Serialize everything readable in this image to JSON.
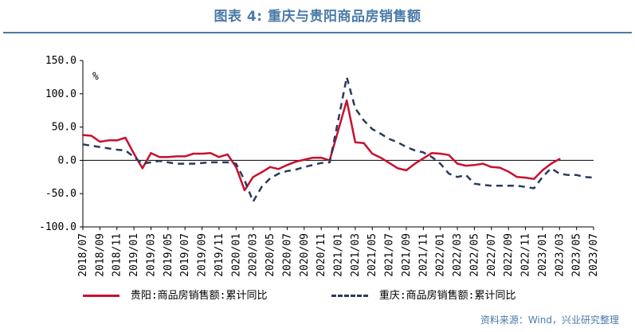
{
  "header": {
    "title": "图表 4:  重庆与贵阳商品房销售额"
  },
  "source": "资料来源：Wind，兴业研究整理",
  "chart_data": {
    "type": "line",
    "title": "图表 4:  重庆与贵阳商品房销售额",
    "unit_label": "%",
    "ylim": [
      -100,
      150
    ],
    "yticks": [
      150,
      100,
      50,
      0,
      -50,
      -100
    ],
    "ytick_labels": [
      "150.0",
      "100.0",
      "50.0",
      "0.0",
      "-50.0",
      "-100.0"
    ],
    "xtick_labels": [
      "2018/07",
      "2018/09",
      "2018/11",
      "2019/01",
      "2019/03",
      "2019/05",
      "2019/07",
      "2019/09",
      "2019/11",
      "2020/01",
      "2020/03",
      "2020/05",
      "2020/07",
      "2020/09",
      "2020/11",
      "2021/01",
      "2021/03",
      "2021/05",
      "2021/07",
      "2021/09",
      "2021/11",
      "2022/01",
      "2022/03",
      "2022/05",
      "2022/07",
      "2022/09",
      "2022/11",
      "2023/01",
      "2023/03",
      "2023/05",
      "2023/07"
    ],
    "x_note": "monthly from 2018/07 to 2023/07; values indexed by month",
    "series": [
      {
        "name": "贵阳:商品房销售额:累计同比",
        "color": "#c8102e",
        "style": "solid",
        "values": [
          38,
          37,
          28,
          30,
          30,
          34,
          10,
          -12,
          11,
          5,
          5,
          6,
          6,
          10,
          10,
          11,
          5,
          9,
          -10,
          -45,
          -25,
          -18,
          -10,
          -13,
          -7,
          -2,
          1,
          4,
          4,
          0,
          45,
          90,
          27,
          26,
          10,
          4,
          -4,
          -12,
          -15,
          -5,
          3,
          11,
          10,
          8,
          -5,
          -8,
          -7,
          -5,
          -10,
          -11,
          -17,
          -25,
          -26,
          -28,
          -15,
          -5,
          2,
          null,
          null,
          null,
          null
        ],
        "display_values": [
          "",
          "",
          "",
          "",
          "",
          "",
          "",
          "",
          "",
          "",
          "",
          "",
          "",
          "",
          "",
          "",
          "",
          "",
          "",
          "",
          "",
          "",
          "",
          "",
          "",
          "",
          "",
          "",
          "",
          "",
          "",
          "",
          "",
          "",
          "",
          "",
          "",
          "",
          "",
          "",
          "",
          "",
          "",
          "",
          "",
          "",
          "",
          "",
          "",
          "",
          "",
          "",
          "",
          "",
          "",
          "",
          ""
        ]
      },
      {
        "name": "重庆:商品房销售额:累计同比",
        "color": "#2b3a5c",
        "style": "dashed",
        "values": [
          24,
          22,
          20,
          18,
          16,
          15,
          5,
          -5,
          -3,
          -1,
          -3,
          -5,
          -5,
          -5,
          -4,
          -3,
          -3,
          -3,
          -5,
          -30,
          -62,
          -40,
          -27,
          -20,
          -16,
          -14,
          -10,
          -7,
          -4,
          -3,
          60,
          125,
          78,
          60,
          47,
          40,
          32,
          27,
          20,
          15,
          12,
          5,
          -5,
          -20,
          -25,
          -22,
          -35,
          -37,
          -38,
          -38,
          -38,
          -38,
          -40,
          -42,
          -25,
          -12,
          -20,
          -22,
          -22,
          -25,
          -26
        ]
      }
    ],
    "legend": [
      "贵阳:商品房销售额:累计同比",
      "重庆:商品房销售额:累计同比"
    ],
    "legend_position": "bottom"
  }
}
